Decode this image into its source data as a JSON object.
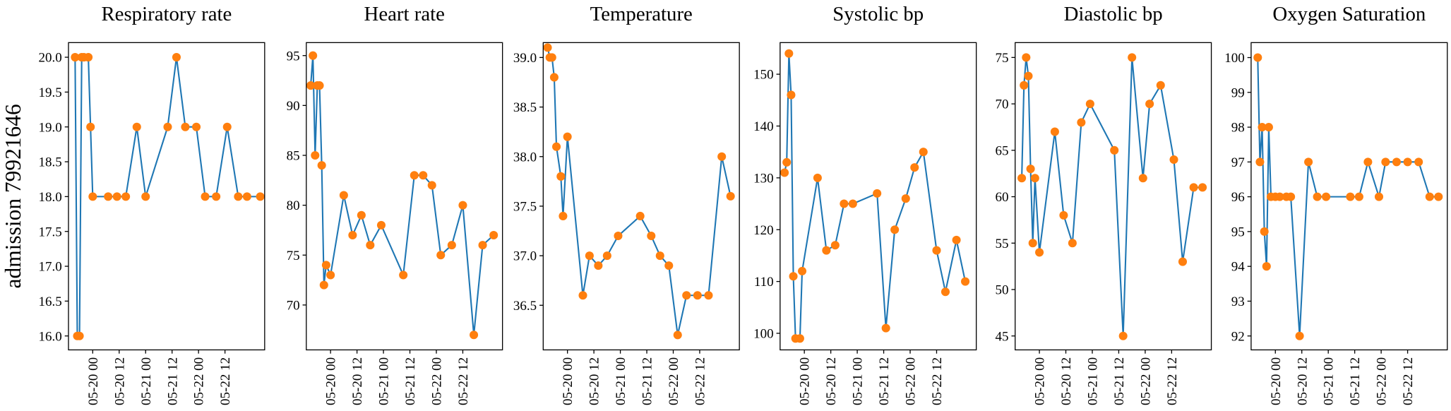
{
  "chart_data": [
    {
      "type": "line",
      "title": "Respiratory rate",
      "ylabel": "admission 79921646",
      "x": [
        "05-19 16",
        "05-19 17",
        "05-19 18",
        "05-19 19",
        "05-19 20",
        "05-19 22",
        "05-19 23",
        "05-20 00",
        "05-20 07",
        "05-20 11",
        "05-20 15",
        "05-20 20",
        "05-21 00",
        "05-21 10",
        "05-21 14",
        "05-21 18",
        "05-21 23",
        "05-22 03",
        "05-22 08",
        "05-22 13",
        "05-22 18",
        "05-22 22",
        "05-23 04"
      ],
      "series": [
        {
          "color": "#1f77b4",
          "marker_color": "#ff7f0e",
          "values": [
            20,
            16,
            16,
            20,
            20,
            20,
            19,
            18,
            18,
            18,
            18,
            19,
            18,
            19,
            20,
            19,
            19,
            18,
            18,
            19,
            18,
            18,
            18
          ]
        }
      ],
      "xlim": [
        "05-19 13",
        "05-23 06"
      ],
      "xticks": [
        "05-20 00",
        "05-20 12",
        "05-21 00",
        "05-21 12",
        "05-22 00",
        "05-22 12"
      ],
      "ylim": [
        15.8,
        20.21
      ],
      "yticks": [
        {
          "value": 16,
          "label": "16.0"
        },
        16.5,
        {
          "value": 17,
          "label": "17.0"
        },
        17.5,
        {
          "value": 18,
          "label": "18.0"
        },
        18.5,
        {
          "value": 19,
          "label": "19.0"
        },
        19.5,
        {
          "value": 20,
          "label": "20.0"
        }
      ]
    },
    {
      "type": "line",
      "title": "Heart rate",
      "x": [
        "05-19 15",
        "05-19 16",
        "05-19 17",
        "05-19 18",
        "05-19 19",
        "05-19 20",
        "05-19 21",
        "05-19 22",
        "05-20 00",
        "05-20 06",
        "05-20 10",
        "05-20 14",
        "05-20 18",
        "05-20 23",
        "05-21 09",
        "05-21 14",
        "05-21 18",
        "05-21 22",
        "05-22 02",
        "05-22 07",
        "05-22 12",
        "05-22 17",
        "05-22 21",
        "05-23 02"
      ],
      "series": [
        {
          "color": "#1f77b4",
          "marker_color": "#ff7f0e",
          "values": [
            92,
            95,
            85,
            92,
            92,
            84,
            72,
            74,
            73,
            81,
            77,
            79,
            76,
            78,
            73,
            83,
            83,
            82,
            75,
            76,
            80,
            67,
            76,
            77
          ]
        }
      ],
      "xlim": [
        "05-19 13",
        "05-23 06"
      ],
      "xticks": [
        "05-20 00",
        "05-20 12",
        "05-21 00",
        "05-21 12",
        "05-22 00",
        "05-22 12"
      ],
      "ylim": [
        65.5,
        96.3
      ],
      "yticks": [
        70,
        75,
        80,
        85,
        90,
        95
      ]
    },
    {
      "type": "line",
      "title": "Temperature",
      "x": [
        "05-19 15",
        "05-19 16",
        "05-19 17",
        "05-19 18",
        "05-19 19",
        "05-19 21",
        "05-19 22",
        "05-20 00",
        "05-20 07",
        "05-20 10",
        "05-20 14",
        "05-20 18",
        "05-20 23",
        "05-21 09",
        "05-21 14",
        "05-21 18",
        "05-21 22",
        "05-22 02",
        "05-22 06",
        "05-22 11",
        "05-22 16",
        "05-22 22",
        "05-23 02"
      ],
      "series": [
        {
          "color": "#1f77b4",
          "marker_color": "#ff7f0e",
          "values": [
            39.1,
            39.0,
            39.0,
            38.8,
            38.1,
            37.8,
            37.4,
            38.2,
            36.6,
            37.0,
            36.9,
            37.0,
            37.2,
            37.4,
            37.2,
            37.0,
            36.9,
            36.2,
            36.6,
            36.6,
            36.6,
            38.0,
            37.6
          ]
        }
      ],
      "xlim": [
        "05-19 13",
        "05-23 06"
      ],
      "xticks": [
        "05-20 00",
        "05-20 12",
        "05-21 00",
        "05-21 12",
        "05-22 00",
        "05-22 12"
      ],
      "ylim": [
        36.05,
        39.15
      ],
      "yticks": [
        36.5,
        {
          "value": 37,
          "label": "37.0"
        },
        37.5,
        {
          "value": 38,
          "label": "38.0"
        },
        38.5,
        {
          "value": 39,
          "label": "39.0"
        }
      ]
    },
    {
      "type": "line",
      "title": "Systolic bp",
      "x": [
        "05-19 15",
        "05-19 16",
        "05-19 17",
        "05-19 18",
        "05-19 19",
        "05-19 20",
        "05-19 22",
        "05-19 23",
        "05-20 06",
        "05-20 10",
        "05-20 14",
        "05-20 18",
        "05-20 22",
        "05-21 09",
        "05-21 13",
        "05-21 17",
        "05-21 22",
        "05-22 02",
        "05-22 06",
        "05-22 12",
        "05-22 16",
        "05-22 21",
        "05-23 01"
      ],
      "series": [
        {
          "color": "#1f77b4",
          "marker_color": "#ff7f0e",
          "values": [
            131,
            133,
            154,
            146,
            111,
            99,
            99,
            112,
            130,
            116,
            117,
            125,
            125,
            127,
            101,
            120,
            126,
            132,
            135,
            116,
            108,
            118,
            110
          ]
        }
      ],
      "xlim": [
        "05-19 13",
        "05-23 06"
      ],
      "xticks": [
        "05-20 00",
        "05-20 12",
        "05-21 00",
        "05-21 12",
        "05-22 00",
        "05-22 12"
      ],
      "ylim": [
        96.8,
        156.1
      ],
      "yticks": [
        100,
        110,
        120,
        130,
        140,
        150
      ]
    },
    {
      "type": "line",
      "title": "Diastolic bp",
      "x": [
        "05-19 16",
        "05-19 17",
        "05-19 18",
        "05-19 19",
        "05-19 20",
        "05-19 21",
        "05-19 22",
        "05-20 00",
        "05-20 07",
        "05-20 11",
        "05-20 15",
        "05-20 19",
        "05-20 23",
        "05-21 10",
        "05-21 14",
        "05-21 18",
        "05-21 23",
        "05-22 02",
        "05-22 07",
        "05-22 13",
        "05-22 17",
        "05-22 22",
        "05-23 02"
      ],
      "series": [
        {
          "color": "#1f77b4",
          "marker_color": "#ff7f0e",
          "values": [
            62,
            72,
            75,
            73,
            63,
            55,
            62,
            54,
            67,
            58,
            55,
            68,
            70,
            65,
            45,
            75,
            62,
            70,
            72,
            64,
            53,
            61,
            61
          ]
        }
      ],
      "xlim": [
        "05-19 13",
        "05-23 06"
      ],
      "xticks": [
        "05-20 00",
        "05-20 12",
        "05-21 00",
        "05-21 12",
        "05-22 00",
        "05-22 12"
      ],
      "ylim": [
        43.5,
        76.6
      ],
      "yticks": [
        45,
        50,
        55,
        60,
        65,
        70,
        75
      ]
    },
    {
      "type": "line",
      "title": "Oxygen Saturation",
      "x": [
        "05-19 16",
        "05-19 17",
        "05-19 18",
        "05-19 19",
        "05-19 20",
        "05-19 21",
        "05-19 22",
        "05-20 00",
        "05-20 02",
        "05-20 05",
        "05-20 07",
        "05-20 11",
        "05-20 15",
        "05-20 19",
        "05-20 23",
        "05-21 10",
        "05-21 14",
        "05-21 18",
        "05-21 23",
        "05-22 02",
        "05-22 07",
        "05-22 12",
        "05-22 17",
        "05-22 22",
        "05-23 02"
      ],
      "series": [
        {
          "color": "#1f77b4",
          "marker_color": "#ff7f0e",
          "values": [
            100,
            97,
            98,
            95,
            94,
            98,
            96,
            96,
            96,
            96,
            96,
            92,
            97,
            96,
            96,
            96,
            96,
            97,
            96,
            97,
            97,
            97,
            97,
            96,
            96
          ]
        }
      ],
      "xlim": [
        "05-19 13",
        "05-23 06"
      ],
      "xticks": [
        "05-20 00",
        "05-20 12",
        "05-21 00",
        "05-21 12",
        "05-22 00",
        "05-22 12"
      ],
      "ylim": [
        91.6,
        100.43
      ],
      "yticks": [
        92,
        93,
        94,
        95,
        96,
        97,
        98,
        99,
        100
      ]
    }
  ]
}
